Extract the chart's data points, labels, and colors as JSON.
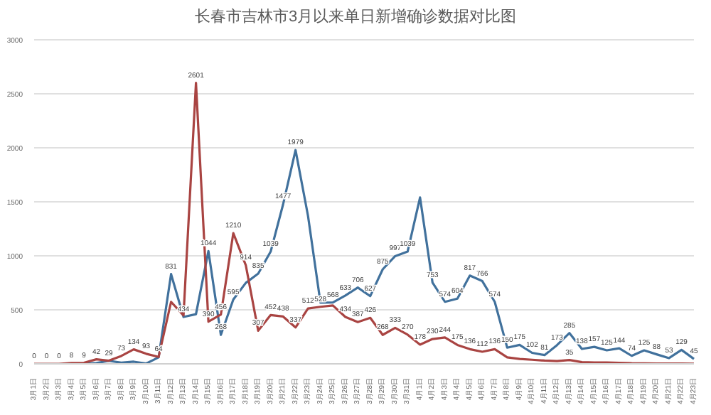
{
  "chart_data": {
    "type": "line",
    "title": "长春市吉林市3月以来单日新增确诊数据对比图",
    "categories": [
      "3月1日",
      "3月2日",
      "3月3日",
      "3月4日",
      "3月5日",
      "3月6日",
      "3月7日",
      "3月8日",
      "3月9日",
      "3月10日",
      "3月11日",
      "3月12日",
      "3月13日",
      "3月14日",
      "3月15日",
      "3月16日",
      "3月17日",
      "3月18日",
      "3月19日",
      "3月20日",
      "3月21日",
      "3月22日",
      "3月23日",
      "3月24日",
      "3月25日",
      "3月26日",
      "3月27日",
      "3月28日",
      "3月29日",
      "3月30日",
      "3月31日",
      "4月1日",
      "4月2日",
      "4月3日",
      "4月4日",
      "4月5日",
      "4月6日",
      "4月7日",
      "4月8日",
      "4月9日",
      "4月10日",
      "4月11日",
      "4月12日",
      "4月13日",
      "4月14日",
      "4月15日",
      "4月16日",
      "4月17日",
      "4月18日",
      "4月19日",
      "4月20日",
      "4月21日",
      "4月22日",
      "4月23日"
    ],
    "series": [
      {
        "color": "#41719c",
        "values": [
          null,
          null,
          null,
          0,
          0,
          7,
          28,
          11,
          20,
          3,
          60,
          831,
          434,
          460,
          1044,
          268,
          595,
          749,
          835,
          1039,
          1477,
          1979,
          1370,
          566,
          568,
          633,
          706,
          627,
          875,
          997,
          1039,
          1540,
          753,
          574,
          604,
          817,
          766,
          574,
          150,
          175,
          102,
          81,
          173,
          285,
          138,
          157,
          125,
          144,
          74,
          125,
          88,
          53,
          129,
          45
        ],
        "value_labels": [
          null,
          null,
          null,
          null,
          null,
          null,
          null,
          null,
          null,
          null,
          null,
          "831",
          "434",
          null,
          "1044",
          "268",
          "595",
          null,
          "835",
          "1039",
          "1477",
          "1979",
          null,
          null,
          "568",
          "633",
          "706",
          "627",
          "875",
          "997",
          "1039",
          null,
          "753",
          "574",
          "604",
          "817",
          "766",
          "574",
          "150",
          "175",
          "102",
          "81",
          "173",
          "285",
          "138",
          "157",
          "125",
          "144",
          "74",
          "125",
          "88",
          "53",
          "129",
          "45"
        ]
      },
      {
        "color": "#a94442",
        "values": [
          0,
          0,
          0,
          8,
          9,
          42,
          29,
          73,
          134,
          93,
          64,
          574,
          448,
          2601,
          390,
          456,
          1210,
          914,
          307,
          452,
          438,
          337,
          512,
          528,
          540,
          434,
          387,
          426,
          268,
          333,
          270,
          178,
          230,
          244,
          175,
          136,
          112,
          136,
          60,
          45,
          38,
          30,
          25,
          35,
          16,
          12,
          12,
          10,
          6,
          5,
          3,
          3,
          2,
          1
        ],
        "value_labels": [
          "0",
          "0",
          "0",
          "8",
          "9",
          "42",
          "29",
          "73",
          "134",
          "93",
          "64",
          null,
          null,
          "2601",
          "390",
          "456",
          "1210",
          "914",
          "307",
          "452",
          "438",
          "337",
          "512",
          "528",
          null,
          "434",
          "387",
          "426",
          "268",
          "333",
          "270",
          "178",
          "230",
          "244",
          "175",
          "136",
          "112",
          "136",
          null,
          null,
          null,
          null,
          null,
          "35",
          null,
          null,
          null,
          null,
          null,
          null,
          null,
          null,
          null,
          null
        ]
      }
    ],
    "ylim": [
      0,
      3000
    ],
    "yticks": [
      0,
      500,
      1000,
      1500,
      2000,
      2500,
      3000
    ],
    "grid": "y"
  }
}
